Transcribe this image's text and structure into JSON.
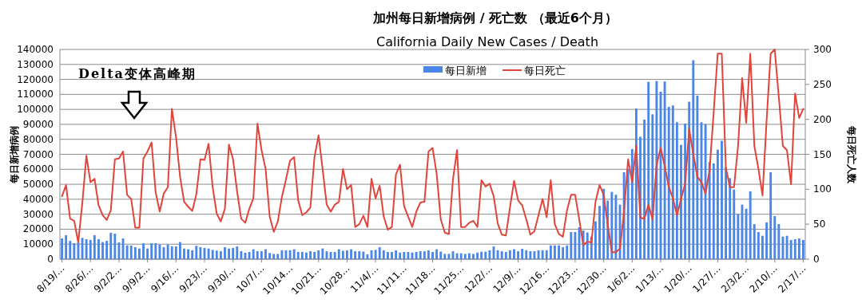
{
  "chart_data": {
    "type": "bar",
    "title": "加州每日新增病例 / 死亡数 （最近6个月）",
    "subtitle": "California Daily New Cases / Death",
    "ylabel": "每日新增病例",
    "y2label": "每日死亡人数",
    "annotations": [
      "Delta变体高峰期"
    ],
    "categories": [
      "8/19/…",
      null,
      null,
      null,
      null,
      null,
      null,
      "8/26/…",
      null,
      null,
      null,
      null,
      null,
      null,
      "9/2/2…",
      null,
      null,
      null,
      null,
      null,
      null,
      "9/9/2…",
      null,
      null,
      null,
      null,
      null,
      null,
      "9/16/…",
      null,
      null,
      null,
      null,
      null,
      null,
      "9/23/…",
      null,
      null,
      null,
      null,
      null,
      null,
      "9/30/…",
      null,
      null,
      null,
      null,
      null,
      null,
      "10/7/…",
      null,
      null,
      null,
      null,
      null,
      null,
      "10/14…",
      null,
      null,
      null,
      null,
      null,
      null,
      "10/21…",
      null,
      null,
      null,
      null,
      null,
      null,
      "10/28…",
      null,
      null,
      null,
      null,
      null,
      null,
      "11/4/…",
      null,
      null,
      null,
      null,
      null,
      null,
      "11/11…",
      null,
      null,
      null,
      null,
      null,
      null,
      "11/18…",
      null,
      null,
      null,
      null,
      null,
      null,
      "11/25…",
      null,
      null,
      null,
      null,
      null,
      null,
      "12/2/…",
      null,
      null,
      null,
      null,
      null,
      null,
      "12/9/…",
      null,
      null,
      null,
      null,
      null,
      null,
      "12/16…",
      null,
      null,
      null,
      null,
      null,
      null,
      "12/23…",
      null,
      null,
      null,
      null,
      null,
      null,
      "12/30…",
      null,
      null,
      null,
      null,
      null,
      null,
      "1/6/2…",
      null,
      null,
      null,
      null,
      null,
      null,
      "1/13/…",
      null,
      null,
      null,
      null,
      null,
      null,
      "1/20/…",
      null,
      null,
      null,
      null,
      null,
      null,
      "1/27/…",
      null,
      null,
      null,
      null,
      null,
      null,
      "2/3/2…",
      null,
      null,
      null,
      null,
      null,
      null,
      "2/10/…",
      null,
      null,
      null,
      null,
      null,
      null,
      "2/17/…"
    ],
    "series": [
      {
        "name": "每日新增",
        "color": "#4a86e8",
        "values": [
          13800,
          16000,
          12200,
          10600,
          11000,
          14200,
          13300,
          12800,
          16000,
          13300,
          11400,
          12200,
          17600,
          17000,
          11200,
          13800,
          9200,
          9100,
          8000,
          7100,
          10600,
          7100,
          10600,
          10600,
          9800,
          8000,
          9800,
          8500,
          8500,
          11400,
          7100,
          6600,
          5900,
          8900,
          8000,
          7500,
          7100,
          6200,
          5700,
          5300,
          8000,
          7100,
          7500,
          8500,
          5300,
          4300,
          4800,
          6600,
          5300,
          5300,
          6600,
          4100,
          3500,
          3500,
          5900,
          5900,
          5900,
          6600,
          4800,
          4800,
          4400,
          5300,
          4800,
          5900,
          7100,
          5300,
          4800,
          4800,
          6600,
          5600,
          5900,
          6600,
          5300,
          5300,
          5000,
          3200,
          5900,
          6200,
          8000,
          5900,
          4800,
          4800,
          5900,
          4400,
          4800,
          4800,
          4400,
          4800,
          5300,
          5300,
          5900,
          4800,
          6600,
          5000,
          3500,
          3500,
          5300,
          3900,
          3900,
          3500,
          3900,
          3500,
          4400,
          5000,
          5000,
          5900,
          8500,
          5900,
          5300,
          4800,
          5900,
          6600,
          5300,
          6900,
          5900,
          5300,
          5300,
          5900,
          5900,
          5900,
          9200,
          9200,
          9200,
          8000,
          9200,
          18100,
          18100,
          21300,
          19200,
          17800,
          15100,
          25200,
          35500,
          47000,
          39100,
          44900,
          43000,
          36400,
          58000,
          60000,
          73500,
          100600,
          81700,
          93200,
          118400,
          96700,
          118900,
          111800,
          118600,
          101700,
          102600,
          91400,
          76300,
          90500,
          105100,
          132800,
          109200,
          91400,
          90200,
          64800,
          63900,
          73100,
          79000,
          61200,
          54100,
          46500,
          30200,
          36400,
          33700,
          45300,
          23400,
          18100,
          15600,
          24500,
          58000,
          28800,
          23400,
          15100,
          15600,
          12800,
          13300,
          13800,
          12800
        ]
      },
      {
        "name": "每日死亡",
        "type": "line",
        "axis": "y2",
        "color": "#e0443a",
        "values": [
          90,
          106,
          58,
          55,
          24,
          80,
          148,
          110,
          115,
          77,
          63,
          56,
          70,
          143,
          144,
          154,
          92,
          86,
          45,
          45,
          144,
          154,
          167,
          96,
          68,
          94,
          103,
          215,
          175,
          118,
          82,
          75,
          69,
          93,
          143,
          142,
          165,
          103,
          65,
          54,
          72,
          164,
          143,
          97,
          58,
          52,
          72,
          87,
          194,
          156,
          129,
          61,
          39,
          54,
          89,
          114,
          141,
          146,
          84,
          63,
          67,
          74,
          146,
          177,
          129,
          78,
          68,
          78,
          82,
          129,
          100,
          106,
          46,
          50,
          62,
          46,
          115,
          87,
          105,
          61,
          42,
          46,
          121,
          135,
          76,
          61,
          46,
          68,
          81,
          82,
          154,
          159,
          122,
          57,
          38,
          36,
          114,
          156,
          46,
          46,
          52,
          55,
          46,
          113,
          104,
          108,
          90,
          51,
          35,
          34,
          74,
          112,
          84,
          77,
          57,
          35,
          40,
          63,
          86,
          60,
          113,
          50,
          36,
          32,
          70,
          92,
          92,
          57,
          20,
          25,
          24,
          82,
          106,
          92,
          49,
          10,
          10,
          15,
          68,
          143,
          110,
          162,
          59,
          58,
          78,
          57,
          135,
          159,
          133,
          103,
          87,
          63,
          86,
          108,
          186,
          150,
          118,
          110,
          94,
          127,
          209,
          294,
          294,
          131,
          103,
          103,
          162,
          259,
          195,
          294,
          162,
          129,
          91,
          198,
          294,
          300,
          232,
          162,
          156,
          107,
          237,
          202,
          215
        ]
      }
    ],
    "ylim": [
      0,
      140000
    ],
    "yticks": [
      0,
      10000,
      20000,
      30000,
      40000,
      50000,
      60000,
      70000,
      80000,
      90000,
      100000,
      110000,
      120000,
      130000,
      140000
    ],
    "y2lim": [
      0,
      300
    ],
    "y2ticks": [
      0,
      50,
      100,
      150,
      200,
      250,
      300
    ],
    "grid": "y",
    "legend": "top"
  }
}
